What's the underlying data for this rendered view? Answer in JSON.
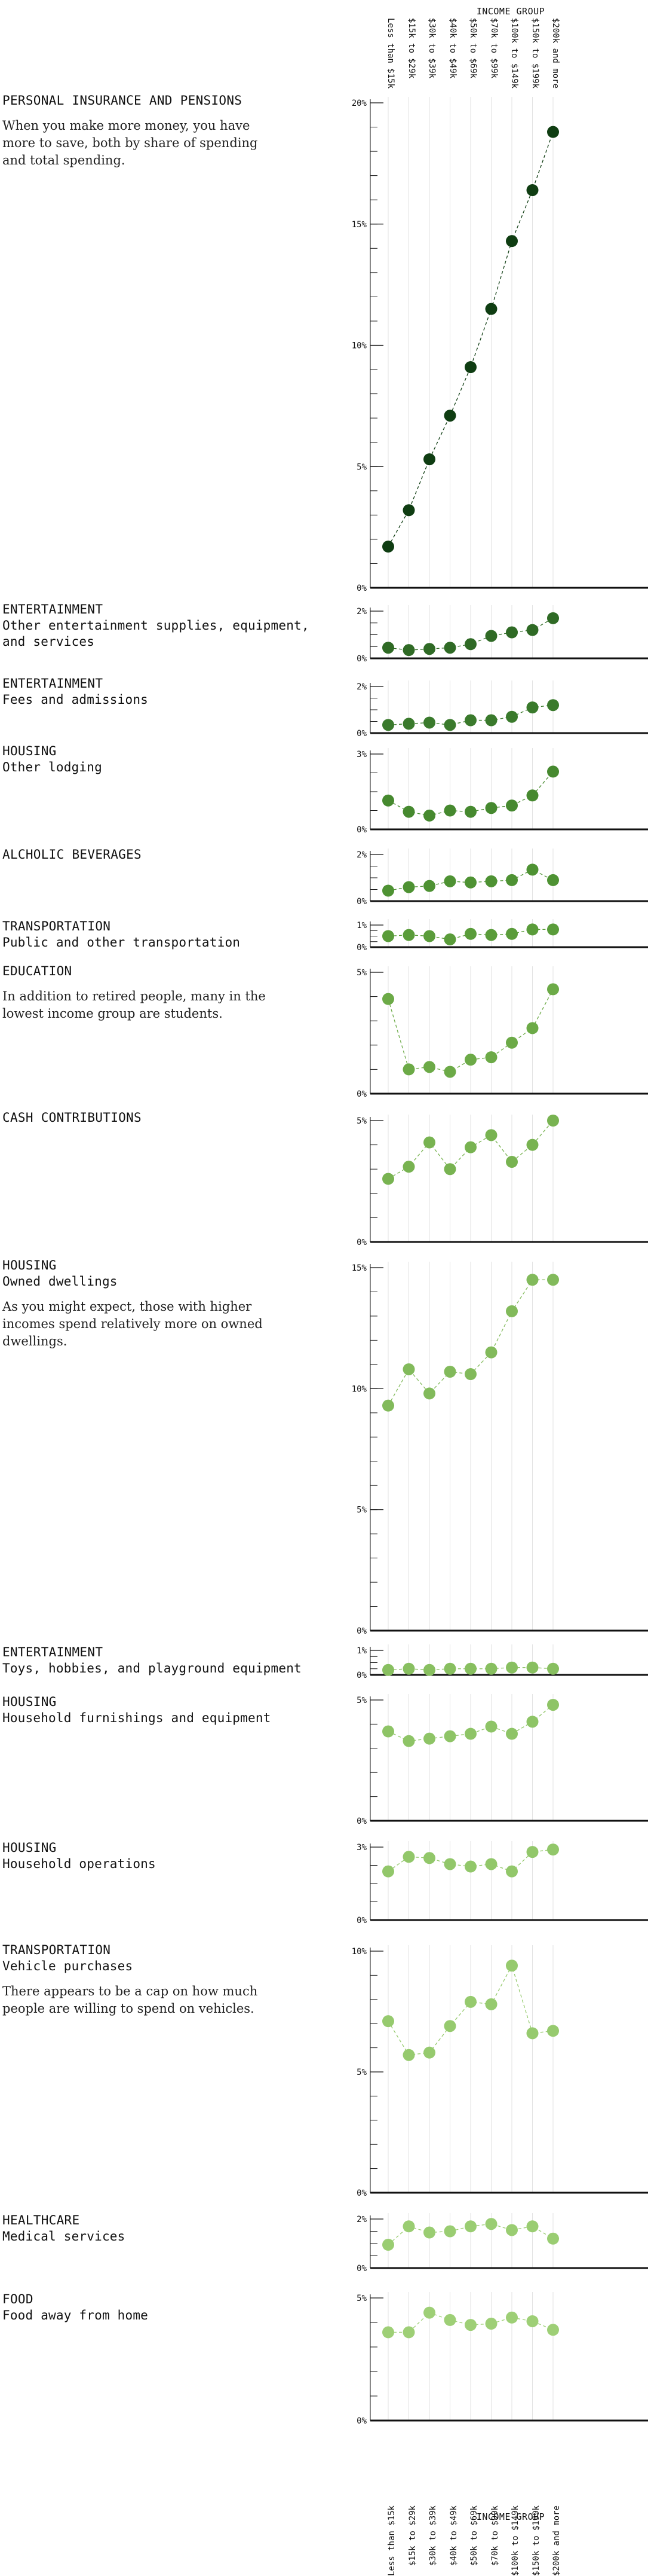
{
  "axis": {
    "title": "INCOME GROUP",
    "groups": [
      "Less than $15k",
      "$15k to $29k",
      "$30k to $39k",
      "$40k to $49k",
      "$50k to $69k",
      "$70k to $99k",
      "$100k to $149k",
      "$150k to $199k",
      "$200k and more"
    ]
  },
  "chart_data": [
    {
      "type": "line",
      "category": "PERSONAL INSURANCE AND PENSIONS",
      "subcategory": "",
      "note": "When you make more money, you have more to save, both by share of spending and total spending.",
      "categories": [
        "Less than $15k",
        "$15k to $29k",
        "$30k to $39k",
        "$40k to $49k",
        "$50k to $69k",
        "$70k to $99k",
        "$100k to $149k",
        "$150k to $199k",
        "$200k and more"
      ],
      "values": [
        1.7,
        3.2,
        5.3,
        7.1,
        9.1,
        11.5,
        14.3,
        16.4,
        18.8
      ],
      "ylim": [
        0,
        20
      ],
      "yticks": [
        0,
        5,
        10,
        15,
        20
      ],
      "ytick_labels": [
        "0%",
        "5%",
        "10%",
        "15%",
        "20%"
      ],
      "color": "#0f3d12"
    },
    {
      "type": "line",
      "category": "ENTERTAINMENT",
      "subcategory": "Other entertainment supplies, equipment, and services",
      "note": "",
      "categories": [
        "Less than $15k",
        "$15k to $29k",
        "$30k to $39k",
        "$40k to $49k",
        "$50k to $69k",
        "$70k to $99k",
        "$100k to $149k",
        "$150k to $199k",
        "$200k and more"
      ],
      "values": [
        0.45,
        0.35,
        0.4,
        0.45,
        0.6,
        0.95,
        1.1,
        1.2,
        1.7
      ],
      "ylim": [
        0,
        2
      ],
      "yticks": [
        0,
        2
      ],
      "ytick_labels": [
        "0%",
        "2%"
      ],
      "color": "#2f6a25"
    },
    {
      "type": "line",
      "category": "ENTERTAINMENT",
      "subcategory": "Fees and admissions",
      "note": "",
      "categories": [
        "Less than $15k",
        "$15k to $29k",
        "$30k to $39k",
        "$40k to $49k",
        "$50k to $69k",
        "$70k to $99k",
        "$100k to $149k",
        "$150k to $199k",
        "$200k and more"
      ],
      "values": [
        0.35,
        0.4,
        0.45,
        0.35,
        0.55,
        0.55,
        0.7,
        1.1,
        1.2
      ],
      "ylim": [
        0,
        2
      ],
      "yticks": [
        0,
        2
      ],
      "ytick_labels": [
        "0%",
        "2%"
      ],
      "color": "#3a7a2c"
    },
    {
      "type": "line",
      "category": "HOUSING",
      "subcategory": "Other lodging",
      "note": "",
      "categories": [
        "Less than $15k",
        "$15k to $29k",
        "$30k to $39k",
        "$40k to $49k",
        "$50k to $69k",
        "$70k to $99k",
        "$100k to $149k",
        "$150k to $199k",
        "$200k and more"
      ],
      "values": [
        1.15,
        0.7,
        0.55,
        0.75,
        0.7,
        0.85,
        0.95,
        1.35,
        2.3
      ],
      "ylim": [
        0,
        3
      ],
      "yticks": [
        0,
        3
      ],
      "ytick_labels": [
        "0%",
        "3%"
      ],
      "color": "#46892f"
    },
    {
      "type": "line",
      "category": "ALCHOLIC BEVERAGES",
      "subcategory": "",
      "note": "",
      "categories": [
        "Less than $15k",
        "$15k to $29k",
        "$30k to $39k",
        "$40k to $49k",
        "$50k to $69k",
        "$70k to $99k",
        "$100k to $149k",
        "$150k to $199k",
        "$200k and more"
      ],
      "values": [
        0.45,
        0.6,
        0.65,
        0.85,
        0.8,
        0.85,
        0.9,
        1.35,
        0.9
      ],
      "ylim": [
        0,
        2
      ],
      "yticks": [
        0,
        2
      ],
      "ytick_labels": [
        "0%",
        "2%"
      ],
      "color": "#4e9233"
    },
    {
      "type": "line",
      "category": "TRANSPORTATION",
      "subcategory": "Public and other transportation",
      "note": "",
      "categories": [
        "Less than $15k",
        "$15k to $29k",
        "$30k to $39k",
        "$40k to $49k",
        "$50k to $69k",
        "$70k to $99k",
        "$100k to $149k",
        "$150k to $199k",
        "$200k and more"
      ],
      "values": [
        0.5,
        0.55,
        0.5,
        0.35,
        0.6,
        0.55,
        0.6,
        0.8,
        0.8
      ],
      "ylim": [
        0,
        1
      ],
      "yticks": [
        0,
        1
      ],
      "ytick_labels": [
        "0%",
        "1%"
      ],
      "color": "#5a9c3a"
    },
    {
      "type": "line",
      "category": "EDUCATION",
      "subcategory": "",
      "note": "In addition to retired people, many in the lowest income group are students.",
      "categories": [
        "Less than $15k",
        "$15k to $29k",
        "$30k to $39k",
        "$40k to $49k",
        "$50k to $69k",
        "$70k to $99k",
        "$100k to $149k",
        "$150k to $199k",
        "$200k and more"
      ],
      "values": [
        3.9,
        1.0,
        1.1,
        0.9,
        1.4,
        1.5,
        2.1,
        2.7,
        4.3
      ],
      "ylim": [
        0,
        5
      ],
      "yticks": [
        0,
        5
      ],
      "ytick_labels": [
        "0%",
        "5%"
      ],
      "color": "#6caa47"
    },
    {
      "type": "line",
      "category": "CASH CONTRIBUTIONS",
      "subcategory": "",
      "note": "",
      "categories": [
        "Less than $15k",
        "$15k to $29k",
        "$30k to $39k",
        "$40k to $49k",
        "$50k to $69k",
        "$70k to $99k",
        "$100k to $149k",
        "$150k to $199k",
        "$200k and more"
      ],
      "values": [
        2.6,
        3.1,
        4.1,
        3.0,
        3.9,
        4.4,
        3.3,
        4.0,
        5.0
      ],
      "ylim": [
        0,
        5
      ],
      "yticks": [
        0,
        5
      ],
      "ytick_labels": [
        "0%",
        "5%"
      ],
      "color": "#78b351"
    },
    {
      "type": "line",
      "category": "HOUSING",
      "subcategory": "Owned dwellings",
      "note": "As you might expect, those with higher incomes spend relatively more on owned dwellings.",
      "categories": [
        "Less than $15k",
        "$15k to $29k",
        "$30k to $39k",
        "$40k to $49k",
        "$50k to $69k",
        "$70k to $99k",
        "$100k to $149k",
        "$150k to $199k",
        "$200k and more"
      ],
      "values": [
        9.3,
        10.8,
        9.8,
        10.7,
        10.6,
        11.5,
        13.2,
        14.5,
        14.5
      ],
      "ylim": [
        0,
        15
      ],
      "yticks": [
        0,
        5,
        10,
        15
      ],
      "ytick_labels": [
        "0%",
        "5%",
        "10%",
        "15%"
      ],
      "color": "#82ba5b"
    },
    {
      "type": "line",
      "category": "ENTERTAINMENT",
      "subcategory": "Toys, hobbies, and playground equipment",
      "note": "",
      "categories": [
        "Less than $15k",
        "$15k to $29k",
        "$30k to $39k",
        "$40k to $49k",
        "$50k to $69k",
        "$70k to $99k",
        "$100k to $149k",
        "$150k to $199k",
        "$200k and more"
      ],
      "values": [
        0.2,
        0.25,
        0.2,
        0.25,
        0.25,
        0.25,
        0.3,
        0.3,
        0.25
      ],
      "ylim": [
        0,
        1
      ],
      "yticks": [
        0,
        1
      ],
      "ytick_labels": [
        "0%",
        "1%"
      ],
      "color": "#88bf60"
    },
    {
      "type": "line",
      "category": "HOUSING",
      "subcategory": "Household furnishings and equipment",
      "note": "",
      "categories": [
        "Less than $15k",
        "$15k to $29k",
        "$30k to $39k",
        "$40k to $49k",
        "$50k to $69k",
        "$70k to $99k",
        "$100k to $149k",
        "$150k to $199k",
        "$200k and more"
      ],
      "values": [
        3.7,
        3.3,
        3.4,
        3.5,
        3.6,
        3.9,
        3.6,
        4.1,
        4.8
      ],
      "ylim": [
        0,
        5
      ],
      "yticks": [
        0,
        5
      ],
      "ytick_labels": [
        "0%",
        "5%"
      ],
      "color": "#8ec466"
    },
    {
      "type": "line",
      "category": "HOUSING",
      "subcategory": "Household operations",
      "note": "",
      "categories": [
        "Less than $15k",
        "$15k to $29k",
        "$30k to $39k",
        "$40k to $49k",
        "$50k to $69k",
        "$70k to $99k",
        "$100k to $149k",
        "$150k to $199k",
        "$200k and more"
      ],
      "values": [
        2.0,
        2.6,
        2.55,
        2.3,
        2.2,
        2.3,
        2.0,
        2.8,
        2.9
      ],
      "ylim": [
        0,
        3
      ],
      "yticks": [
        0,
        3
      ],
      "ytick_labels": [
        "0%",
        "3%"
      ],
      "color": "#92c76a"
    },
    {
      "type": "line",
      "category": "TRANSPORTATION",
      "subcategory": "Vehicle purchases",
      "note": "There appears to be a cap on how much people are willing to spend on vehicles.",
      "categories": [
        "Less than $15k",
        "$15k to $29k",
        "$30k to $39k",
        "$40k to $49k",
        "$50k to $69k",
        "$70k to $99k",
        "$100k to $149k",
        "$150k to $199k",
        "$200k and more"
      ],
      "values": [
        7.1,
        5.7,
        5.8,
        6.9,
        7.9,
        7.8,
        9.4,
        6.6,
        6.7
      ],
      "ylim": [
        0,
        10
      ],
      "yticks": [
        0,
        5,
        10
      ],
      "ytick_labels": [
        "0%",
        "5%",
        "10%"
      ],
      "color": "#96ca6e"
    },
    {
      "type": "line",
      "category": "HEALTHCARE",
      "subcategory": "Medical services",
      "note": "",
      "categories": [
        "Less than $15k",
        "$15k to $29k",
        "$30k to $39k",
        "$40k to $49k",
        "$50k to $69k",
        "$70k to $99k",
        "$100k to $149k",
        "$150k to $199k",
        "$200k and more"
      ],
      "values": [
        0.95,
        1.7,
        1.45,
        1.5,
        1.7,
        1.8,
        1.55,
        1.7,
        1.2
      ],
      "ylim": [
        0,
        2
      ],
      "yticks": [
        0,
        2
      ],
      "ytick_labels": [
        "0%",
        "2%"
      ],
      "color": "#9acd72"
    },
    {
      "type": "line",
      "category": "FOOD",
      "subcategory": "Food away from home",
      "note": "",
      "categories": [
        "Less than $15k",
        "$15k to $29k",
        "$30k to $39k",
        "$40k to $49k",
        "$50k to $69k",
        "$70k to $99k",
        "$100k to $149k",
        "$150k to $199k",
        "$200k and more"
      ],
      "values": [
        3.6,
        3.6,
        4.4,
        4.1,
        3.9,
        3.95,
        4.2,
        4.05,
        3.7
      ],
      "ylim": [
        0,
        5
      ],
      "yticks": [
        0,
        5
      ],
      "ytick_labels": [
        "0%",
        "5%"
      ],
      "color": "#9ecf76"
    }
  ]
}
